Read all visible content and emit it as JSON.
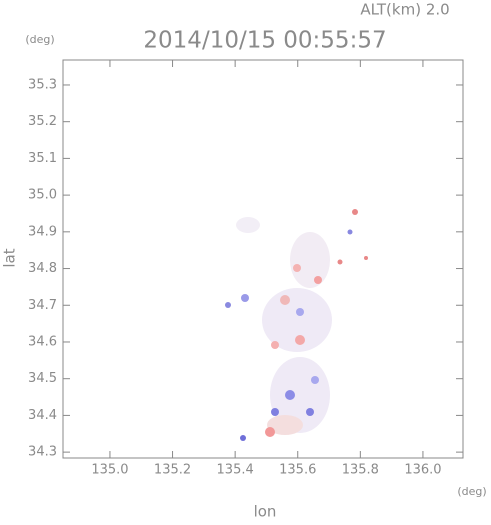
{
  "chart_data": {
    "type": "map",
    "title": "2014/10/15 00:55:57",
    "subtitle": "ALT(km) 2.0",
    "x_label": "lon",
    "y_label": "lat",
    "x_unit": "(deg)",
    "y_unit": "(deg)",
    "xlim": [
      134.85,
      136.128
    ],
    "ylim": [
      34.284,
      35.368
    ],
    "xticks": [
      {
        "value": 135.0,
        "label": "135.0"
      },
      {
        "value": 135.2,
        "label": "135.2"
      },
      {
        "value": 135.4,
        "label": "135.4"
      },
      {
        "value": 135.6,
        "label": "135.6"
      },
      {
        "value": 135.8,
        "label": "135.8"
      },
      {
        "value": 136.0,
        "label": "136.0"
      }
    ],
    "yticks": [
      34.3,
      34.4,
      34.5,
      34.6,
      34.7,
      34.8,
      34.9,
      {
        "value": 35.0,
        "label": "35.0"
      },
      35.1,
      35.2,
      35.3
    ]
  }
}
